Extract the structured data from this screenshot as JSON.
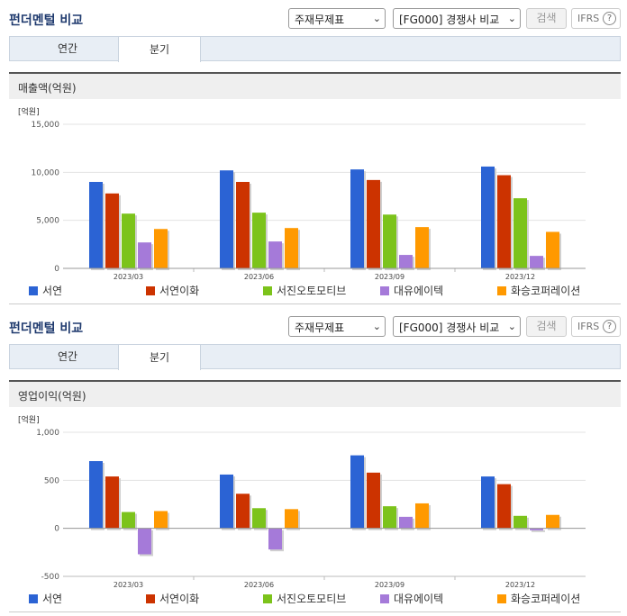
{
  "panels": [
    {
      "title": "펀더멘털 비교",
      "select1": "주재무제표",
      "select2": "[FG000] 경쟁사 비교",
      "search_label": "검색",
      "ifrs_label": "IFRS",
      "help_label": "?",
      "tabs": [
        "연간",
        "분기"
      ],
      "subtitle": "매출액(억원)"
    },
    {
      "title": "펀더멘털 비교",
      "select1": "주재무제표",
      "select2": "[FG000] 경쟁사 비교",
      "search_label": "검색",
      "ifrs_label": "IFRS",
      "help_label": "?",
      "tabs": [
        "연간",
        "분기"
      ],
      "subtitle": "영업이익(억원)"
    }
  ],
  "series_names": [
    "서연",
    "서연이화",
    "서진오토모티브",
    "대유에이텍",
    "화승코퍼레이션"
  ],
  "series_colors": [
    "#2b63d4",
    "#cc3300",
    "#7cc31b",
    "#a57ad9",
    "#ff9900"
  ],
  "chart_data": [
    {
      "type": "bar",
      "unit_label": "[억원]",
      "categories": [
        "2023/03",
        "2023/06",
        "2023/09",
        "2023/12"
      ],
      "ylim": [
        0,
        15000
      ],
      "yticks": [
        0,
        5000,
        10000,
        15000
      ],
      "ytick_labels": [
        "0",
        "5,000",
        "10,000",
        "15,000"
      ],
      "grid": true,
      "legend": "bottom",
      "series": [
        {
          "name": "서연",
          "values": [
            9000,
            10200,
            10300,
            10600
          ]
        },
        {
          "name": "서연이화",
          "values": [
            7800,
            9000,
            9200,
            9700
          ]
        },
        {
          "name": "서진오토모티브",
          "values": [
            5700,
            5800,
            5600,
            7300
          ]
        },
        {
          "name": "대유에이텍",
          "values": [
            2700,
            2800,
            1400,
            1300
          ]
        },
        {
          "name": "화승코퍼레이션",
          "values": [
            4100,
            4200,
            4300,
            3800
          ]
        }
      ]
    },
    {
      "type": "bar",
      "unit_label": "[억원]",
      "categories": [
        "2023/03",
        "2023/06",
        "2023/09",
        "2023/12"
      ],
      "ylim": [
        -500,
        1000
      ],
      "yticks": [
        -500,
        0,
        500,
        1000
      ],
      "ytick_labels": [
        "-500",
        "0",
        "500",
        "1,000"
      ],
      "grid": true,
      "legend": "bottom",
      "series": [
        {
          "name": "서연",
          "values": [
            700,
            560,
            760,
            540
          ]
        },
        {
          "name": "서연이화",
          "values": [
            540,
            360,
            580,
            460
          ]
        },
        {
          "name": "서진오토모티브",
          "values": [
            170,
            210,
            230,
            130
          ]
        },
        {
          "name": "대유에이텍",
          "values": [
            -270,
            -220,
            120,
            -20
          ]
        },
        {
          "name": "화승코퍼레이션",
          "values": [
            180,
            200,
            260,
            140
          ]
        }
      ]
    }
  ]
}
